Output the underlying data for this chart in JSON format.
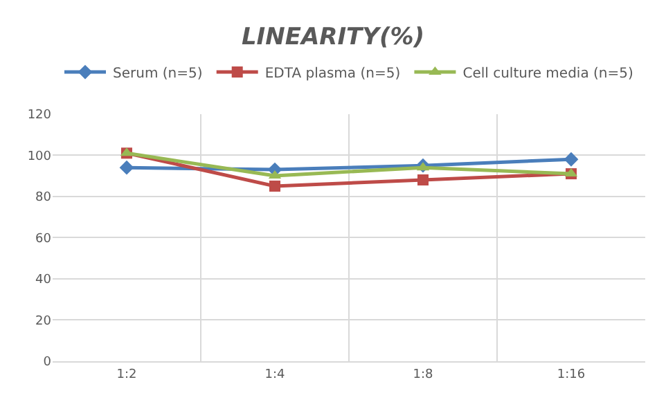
{
  "chart_data": {
    "type": "line",
    "title": "LINEARITY(%)",
    "categories": [
      "1:2",
      "1:4",
      "1:8",
      "1:16"
    ],
    "series": [
      {
        "name": "Serum (n=5)",
        "color": "#4a7ebb",
        "marker": "diamond",
        "values": [
          94,
          93,
          95,
          98
        ]
      },
      {
        "name": "EDTA plasma (n=5)",
        "color": "#be4b48",
        "marker": "square",
        "values": [
          101,
          85,
          88,
          91
        ]
      },
      {
        "name": "Cell culture media (n=5)",
        "color": "#98b954",
        "marker": "triangle",
        "values": [
          101,
          90,
          94,
          91
        ]
      }
    ],
    "ylim": [
      0,
      120
    ],
    "yticks": [
      0,
      20,
      40,
      60,
      80,
      100,
      120
    ],
    "grid": true,
    "legend": "top"
  }
}
